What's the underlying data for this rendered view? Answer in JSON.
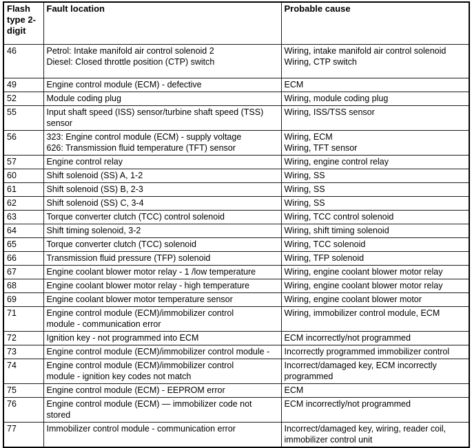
{
  "table": {
    "columns": [
      {
        "label": "Flash type 2-digit"
      },
      {
        "label": "Fault location"
      },
      {
        "label": "Probable cause"
      }
    ],
    "rows": [
      {
        "code": "46",
        "fault": "Petrol: Intake manifold air control solenoid 2\nDiesel: Closed throttle position (CTP) switch",
        "cause": "Wiring, intake manifold air control solenoid\nWiring, CTP switch"
      },
      {
        "code": "49",
        "fault": "Engine control module (ECM) - defective",
        "cause": "ECM"
      },
      {
        "code": "52",
        "fault": "Module coding plug",
        "cause": "Wiring, module coding plug"
      },
      {
        "code": "55",
        "fault": "Input shaft speed (ISS) sensor/turbine shaft speed (TSS)\nsensor",
        "cause": "Wiring, ISS/TSS sensor"
      },
      {
        "code": "56",
        "fault": "323: Engine control module (ECM) - supply voltage\n626: Transmission fluid temperature (TFT) sensor",
        "cause": "Wiring, ECM\nWiring, TFT sensor"
      },
      {
        "code": "57",
        "fault": "Engine control relay",
        "cause": "Wiring, engine control relay"
      },
      {
        "code": "60",
        "fault": "Shift solenoid (SS) A, 1-2",
        "cause": "Wiring, SS"
      },
      {
        "code": "61",
        "fault": "Shift solenoid (SS) B, 2-3",
        "cause": "Wiring, SS"
      },
      {
        "code": "62",
        "fault": "Shift solenoid (SS) C, 3-4",
        "cause": "Wiring, SS"
      },
      {
        "code": "63",
        "fault": "Torque converter clutch (TCC) control solenoid",
        "cause": "Wiring, TCC control solenoid"
      },
      {
        "code": "64",
        "fault": "Shift timing solenoid, 3-2",
        "cause": "Wiring, shift timing solenoid"
      },
      {
        "code": "65",
        "fault": "Torque converter clutch (TCC) solenoid",
        "cause": "Wiring, TCC solenoid"
      },
      {
        "code": "66",
        "fault": "Transmission fluid pressure (TFP) solenoid",
        "cause": "Wiring, TFP solenoid"
      },
      {
        "code": "67",
        "fault": "Engine coolant blower motor relay - 1 /low temperature",
        "cause": "Wiring, engine coolant blower motor relay"
      },
      {
        "code": "68",
        "fault": "Engine coolant blower motor relay - high temperature",
        "cause": "Wiring, engine coolant blower motor relay"
      },
      {
        "code": "69",
        "fault": "Engine coolant blower motor temperature sensor",
        "cause": "Wiring, engine coolant blower motor"
      },
      {
        "code": "71",
        "fault": "Engine control module (ECM)/immobilizer control\nmodule - communication error",
        "cause": "Wiring, immobilizer control module, ECM"
      },
      {
        "code": "72",
        "fault": "Ignition key - not programmed into ECM",
        "cause": "ECM incorrectly/not programmed"
      },
      {
        "code": "73",
        "fault": "Engine control module (ECM)/immobilizer control module -",
        "cause": "Incorrectly programmed immobilizer control"
      },
      {
        "code": "74",
        "fault": "Engine control module (ECM)/immobilizer control\nmodule - ignition key codes not match",
        "cause": "Incorrect/damaged key, ECM incorrectly\nprogrammed"
      },
      {
        "code": "75",
        "fault": "Engine control module (ECM) - EEPROM error",
        "cause": "ECM"
      },
      {
        "code": "76",
        "fault": "Engine control module (ECM) — immobilizer code not\nstored",
        "cause": "ECM incorrectly/not programmed"
      },
      {
        "code": "77",
        "fault": "Immobilizer control module - communication error",
        "cause": "Incorrect/damaged key, wiring, reader coil,\nimmobilizer control unit"
      }
    ]
  }
}
